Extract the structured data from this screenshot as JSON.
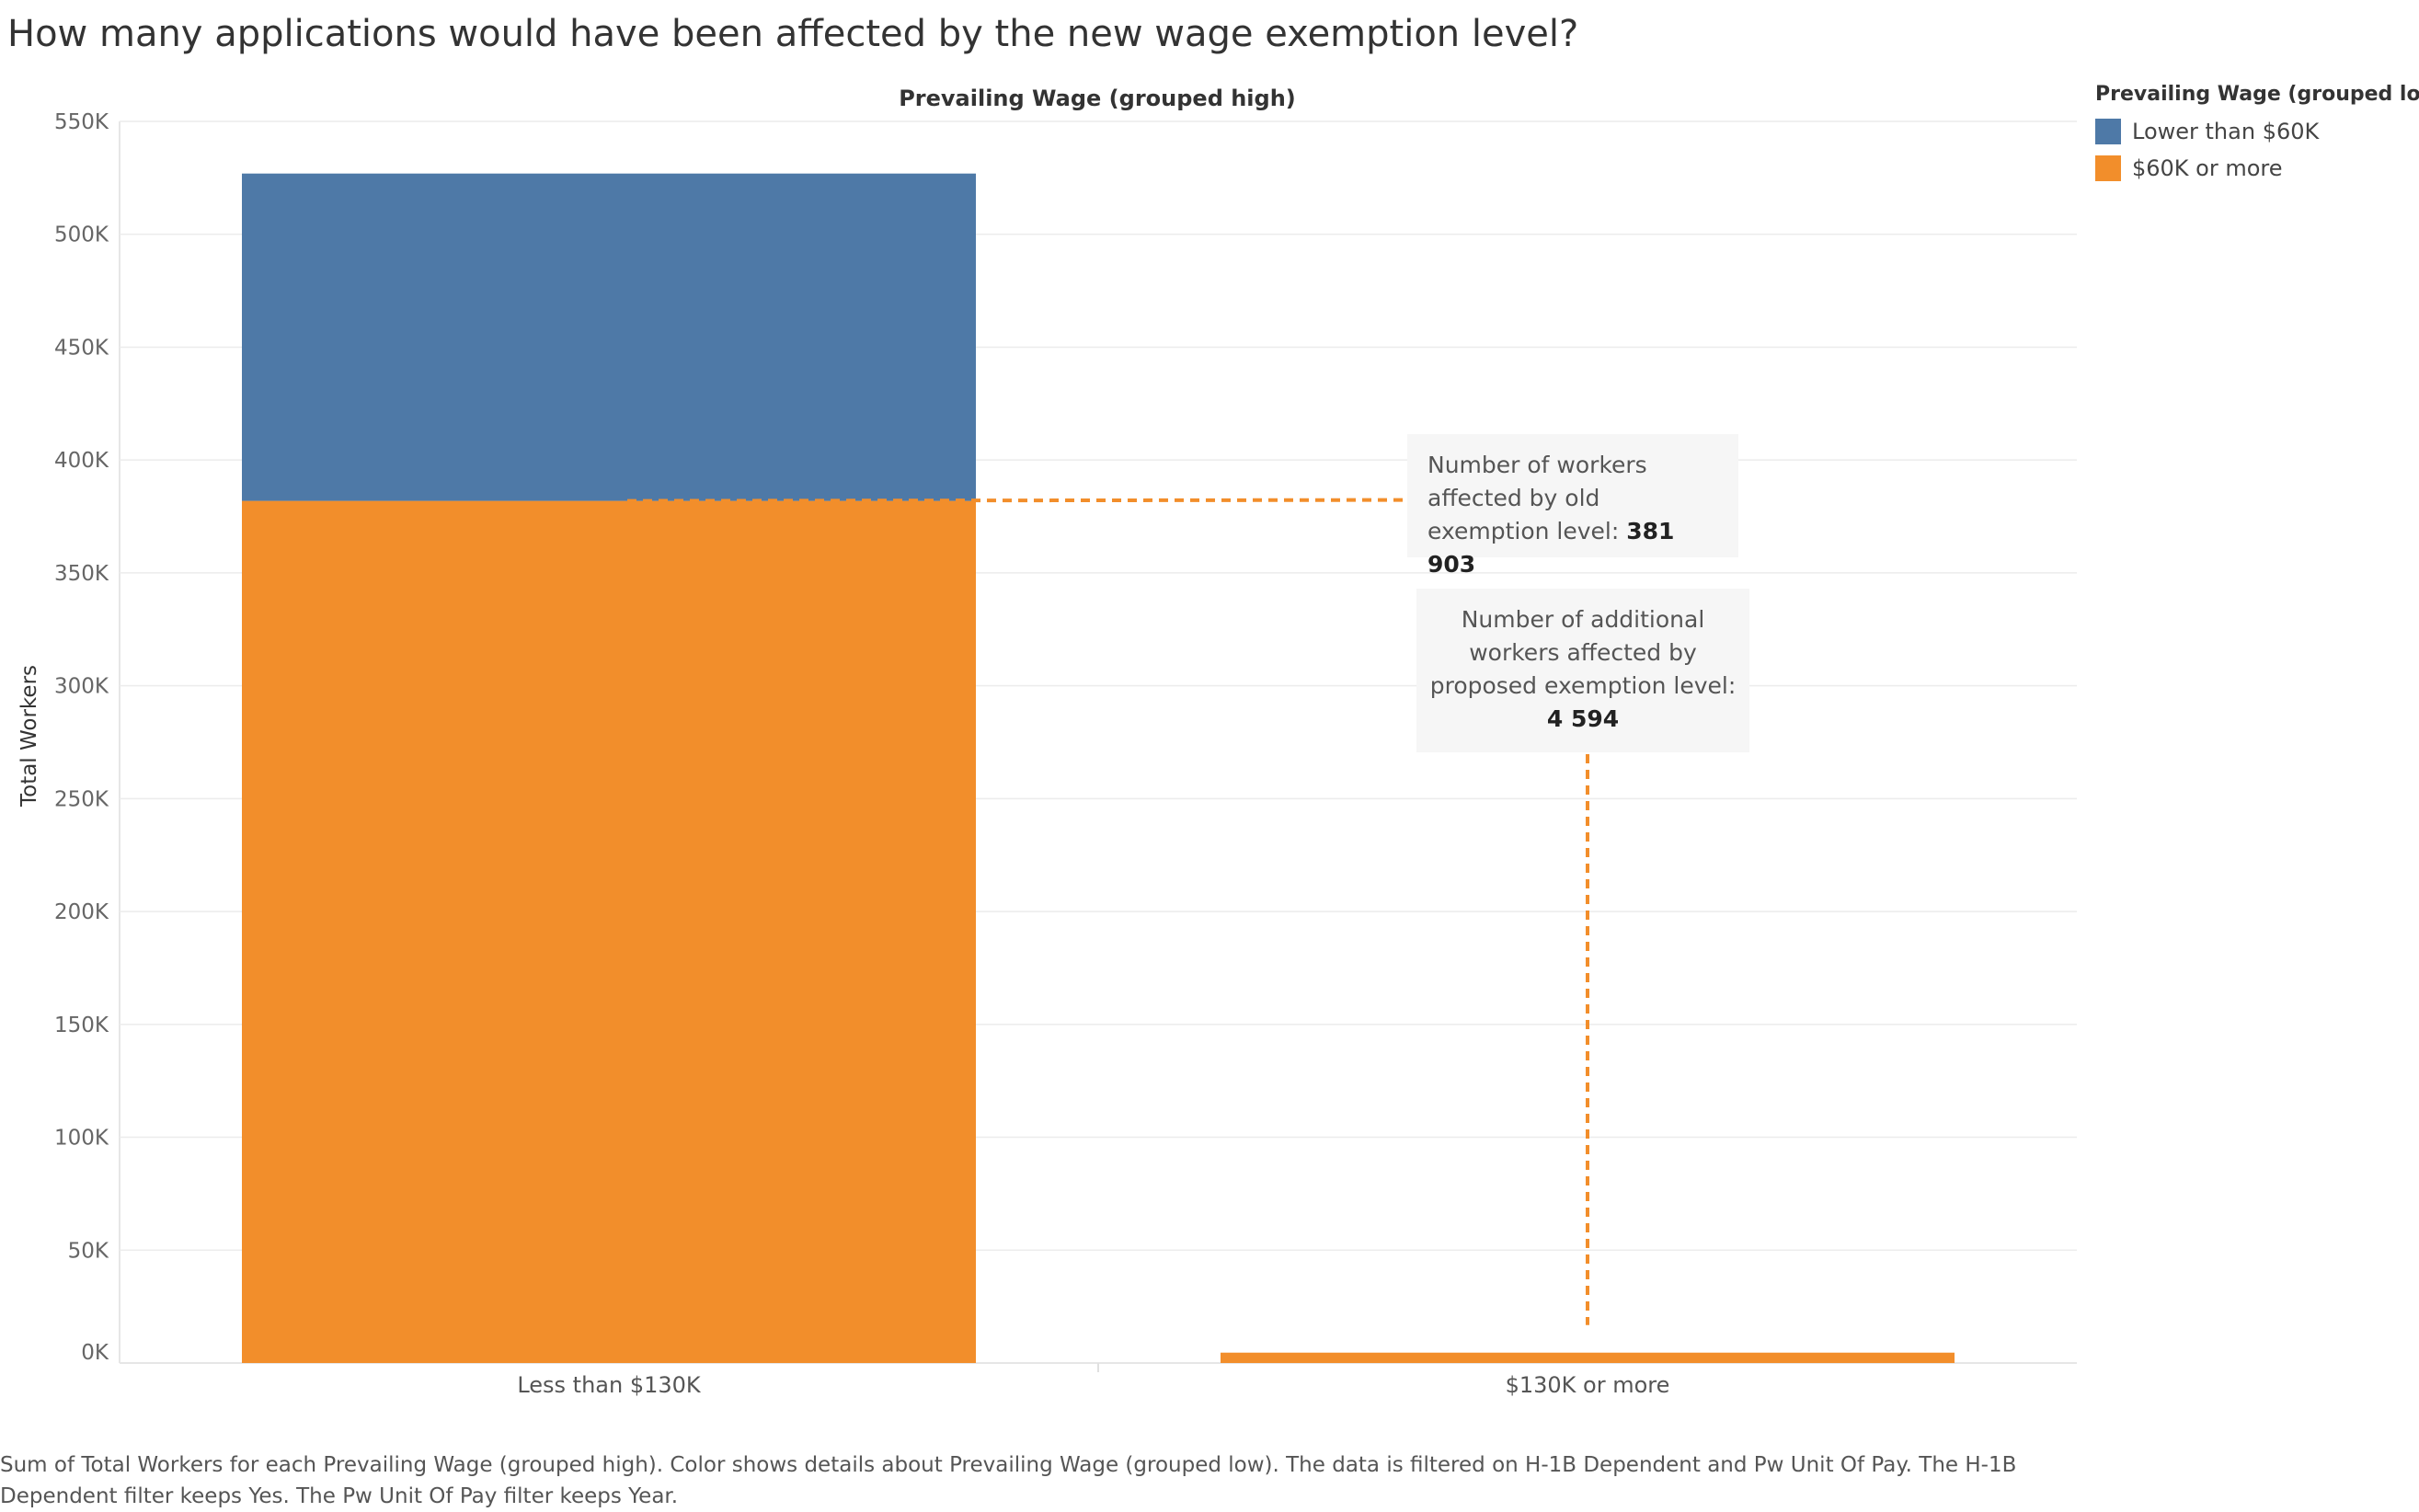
{
  "title": "How many applications would have been affected by the new wage exemption level?",
  "chart_data": {
    "type": "bar",
    "stacked": true,
    "column_header": "Prevailing Wage (grouped high)",
    "categories": [
      "Less than $130K",
      "$130K or more"
    ],
    "series": [
      {
        "name": "$60K or more",
        "color": "#F28E2B",
        "values": [
          381903,
          4594
        ]
      },
      {
        "name": "Lower than $60K",
        "color": "#4E79A7",
        "values": [
          145000,
          0
        ]
      }
    ],
    "ylabel": "Total Workers",
    "ylim": [
      0,
      550000
    ],
    "yticks": [
      0,
      50000,
      100000,
      150000,
      200000,
      250000,
      300000,
      350000,
      400000,
      450000,
      500000,
      550000
    ],
    "ytick_labels": [
      "0K",
      "50K",
      "100K",
      "150K",
      "200K",
      "250K",
      "300K",
      "350K",
      "400K",
      "450K",
      "500K",
      "550K"
    ],
    "grid": true,
    "legend": {
      "title": "Prevailing Wage (grouped low)",
      "placement": "top-right",
      "items": [
        {
          "label": "Lower than $60K",
          "color": "#4E79A7"
        },
        {
          "label": "$60K or more",
          "color": "#F28E2B"
        }
      ]
    },
    "annotations": [
      {
        "text": "Number of workers affected by old exemption level:",
        "value": "381 903",
        "ref_value": 381903,
        "target": "Less than $130K"
      },
      {
        "text": "Number of additional workers affected by proposed exemption level:",
        "value": "4 594",
        "ref_value": 4594,
        "target": "$130K or more"
      }
    ]
  },
  "caption": "Sum of Total Workers for each Prevailing Wage (grouped high).  Color shows details about Prevailing Wage (grouped low). The data is filtered on H-1B Dependent and Pw Unit Of Pay. The H-1B Dependent filter keeps Yes. The Pw Unit Of Pay filter keeps Year."
}
